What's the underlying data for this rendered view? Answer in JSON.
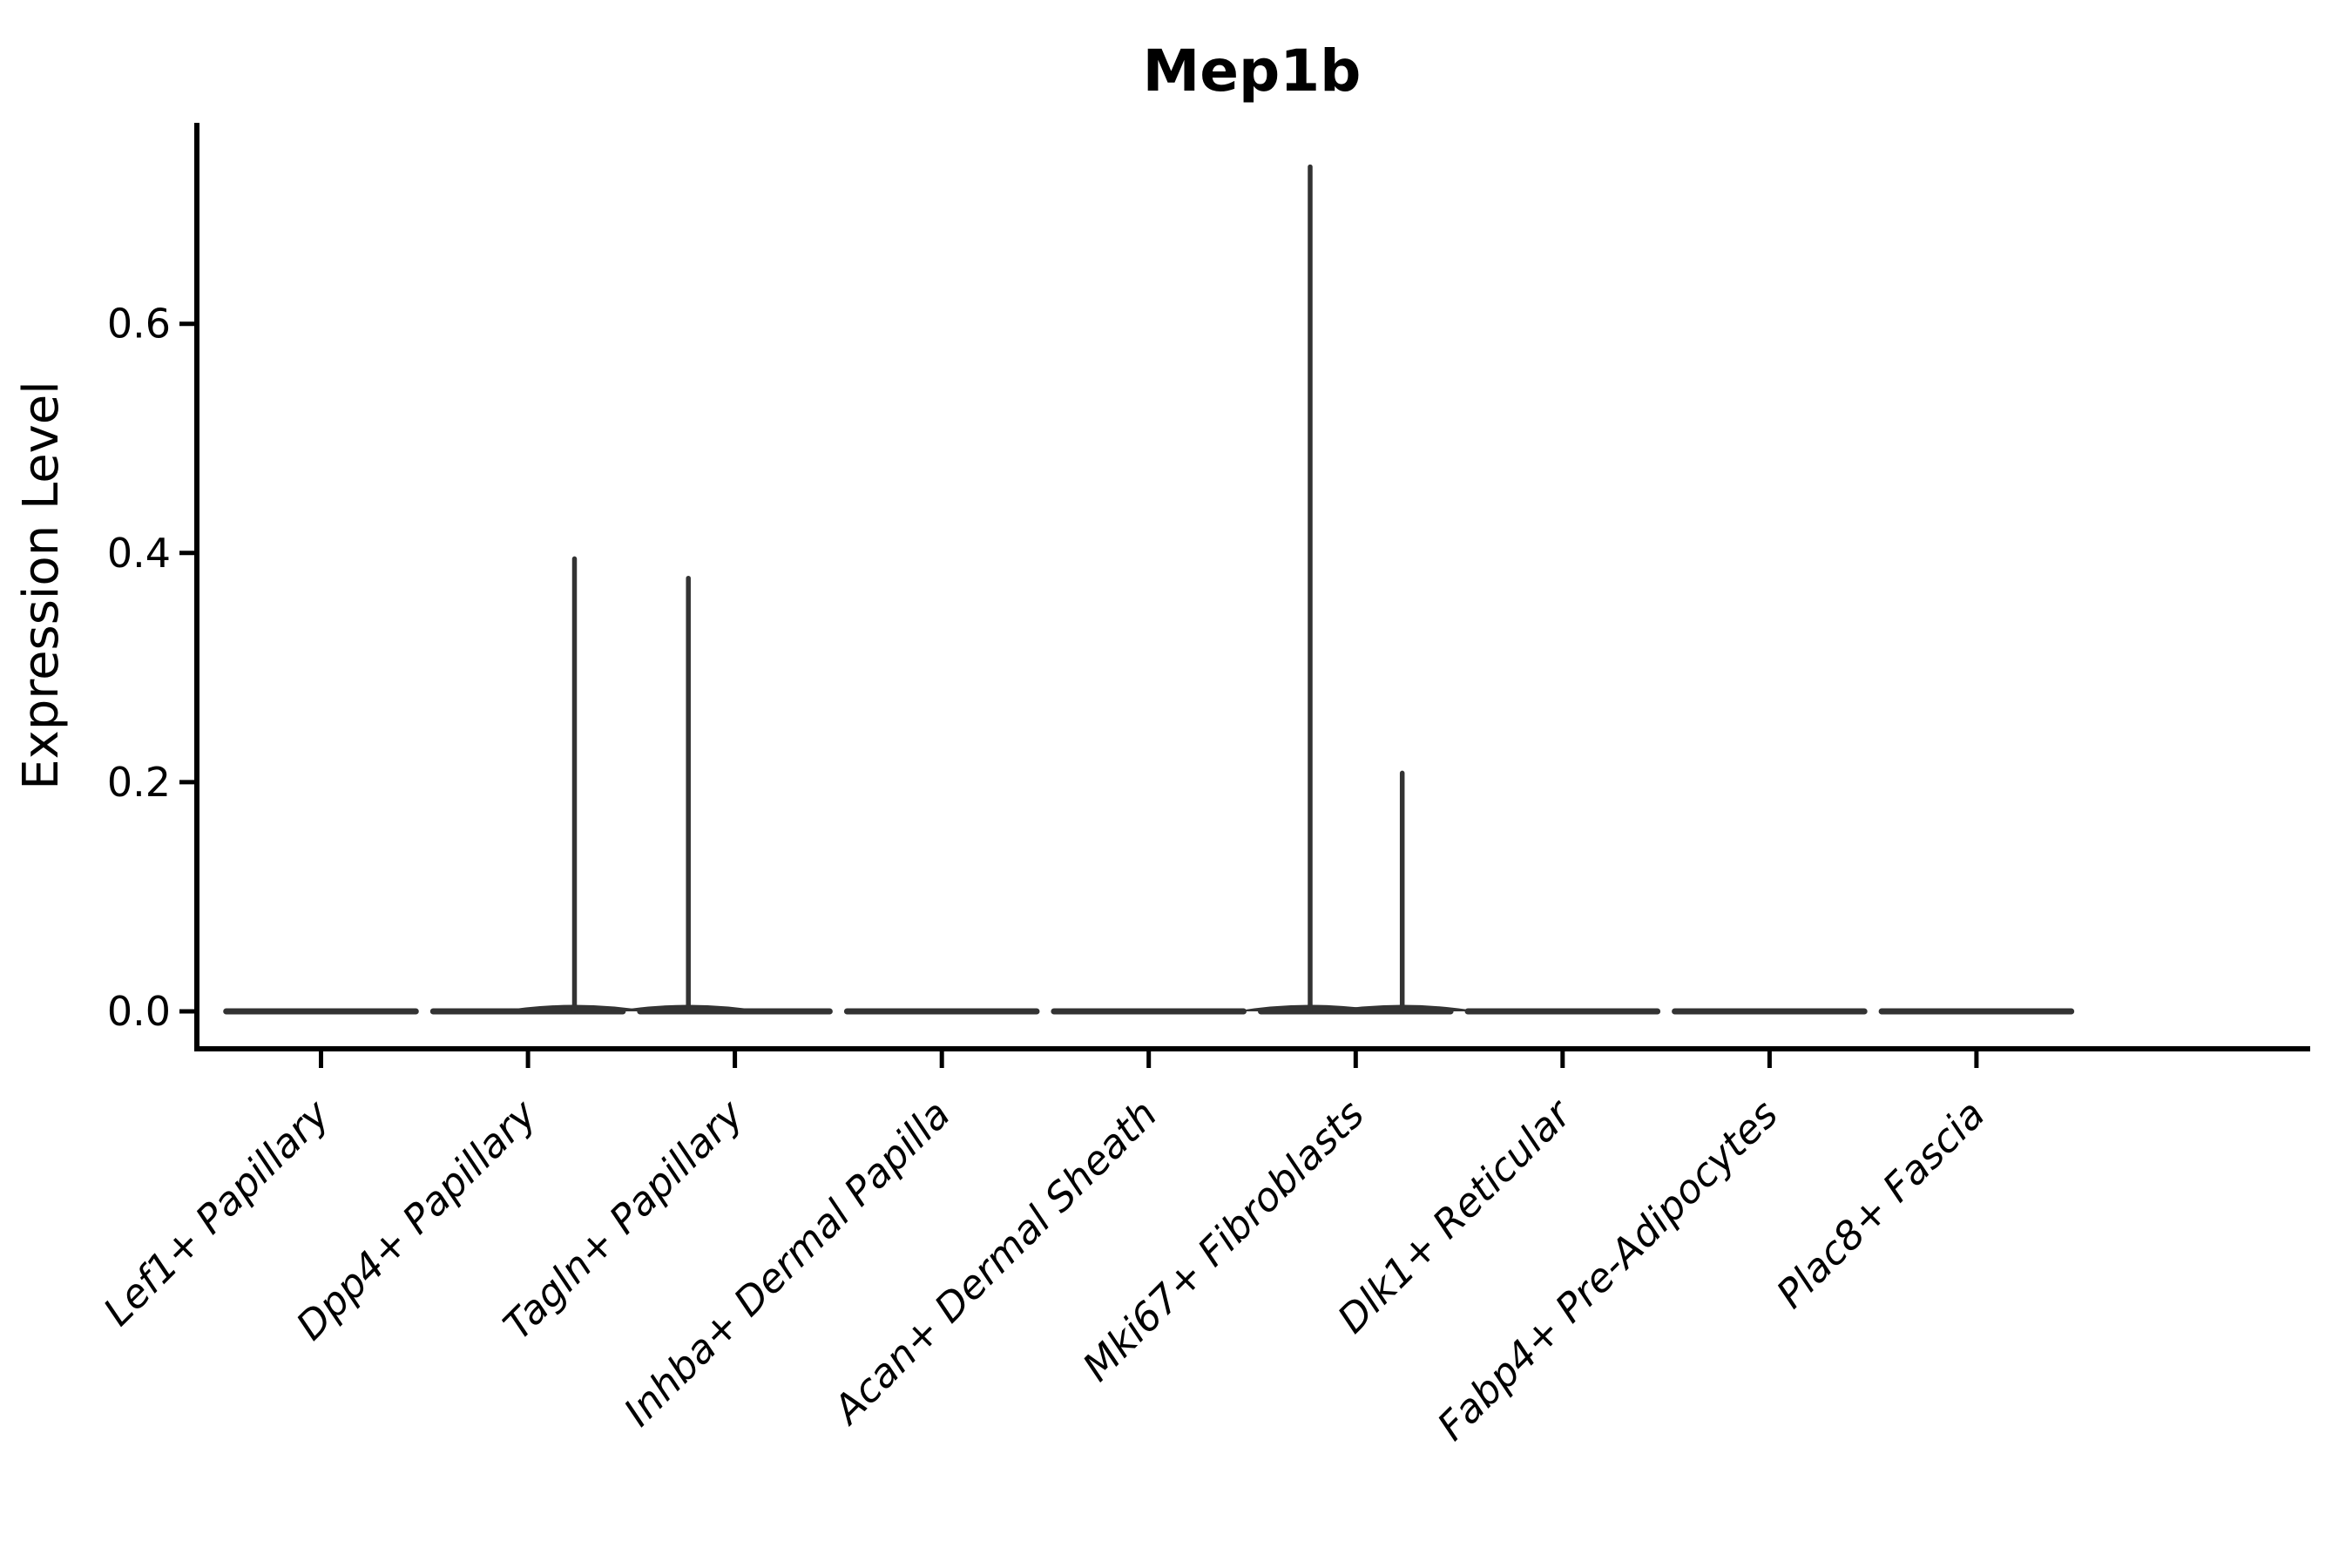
{
  "figure": {
    "colors": {
      "violin": "#333333",
      "axis": "#000000",
      "text": "#000000",
      "background": "#ffffff"
    }
  },
  "chart_data": {
    "type": "violin",
    "title": "Mep1b",
    "xlabel": "",
    "ylabel": "Expression Level",
    "ylim": [
      -0.033,
      0.773
    ],
    "yticks": [
      {
        "label": "0.0",
        "value": 0.0
      },
      {
        "label": "0.2",
        "value": 0.2
      },
      {
        "label": "0.4",
        "value": 0.4
      },
      {
        "label": "0.6",
        "value": 0.6
      }
    ],
    "categories": [
      "Lef1+ Papillary",
      "Dpp4+ Papillary",
      "Tagln+ Papillary",
      "Inhba+ Dermal Papilla",
      "Acan+ Dermal Sheath",
      "Mki67+ Fibroblasts",
      "Dlk1+ Reticular",
      "Fabp4+ Pre-Adipocytes",
      "Plac8+ Fascia"
    ],
    "violins": [
      {
        "category": "Lef1+ Papillary",
        "body": "flat-at-zero",
        "spikes": []
      },
      {
        "category": "Dpp4+ Papillary",
        "body": "flat-at-zero",
        "spikes": [
          {
            "offset": 0.225,
            "value": 0.395
          }
        ]
      },
      {
        "category": "Tagln+ Papillary",
        "body": "flat-at-zero",
        "spikes": [
          {
            "offset": -0.225,
            "value": 0.378
          }
        ]
      },
      {
        "category": "Inhba+ Dermal Papilla",
        "body": "flat-at-zero",
        "spikes": []
      },
      {
        "category": "Acan+ Dermal Sheath",
        "body": "flat-at-zero",
        "spikes": []
      },
      {
        "category": "Mki67+ Fibroblasts",
        "body": "flat-at-zero",
        "spikes": [
          {
            "offset": -0.22,
            "value": 0.737
          },
          {
            "offset": 0.225,
            "value": 0.208
          }
        ]
      },
      {
        "category": "Dlk1+ Reticular",
        "body": "flat-at-zero",
        "spikes": []
      },
      {
        "category": "Fabp4+ Pre-Adipocytes",
        "body": "flat-at-zero",
        "spikes": []
      },
      {
        "category": "Plac8+ Fascia",
        "body": "flat-at-zero",
        "spikes": []
      }
    ],
    "violin_half_width_units": 0.458,
    "layout_hints": {
      "grid": false,
      "legend": false,
      "x_tick_rotation": 45,
      "x_tick_style": "italic",
      "spines": [
        "left",
        "bottom"
      ]
    }
  }
}
